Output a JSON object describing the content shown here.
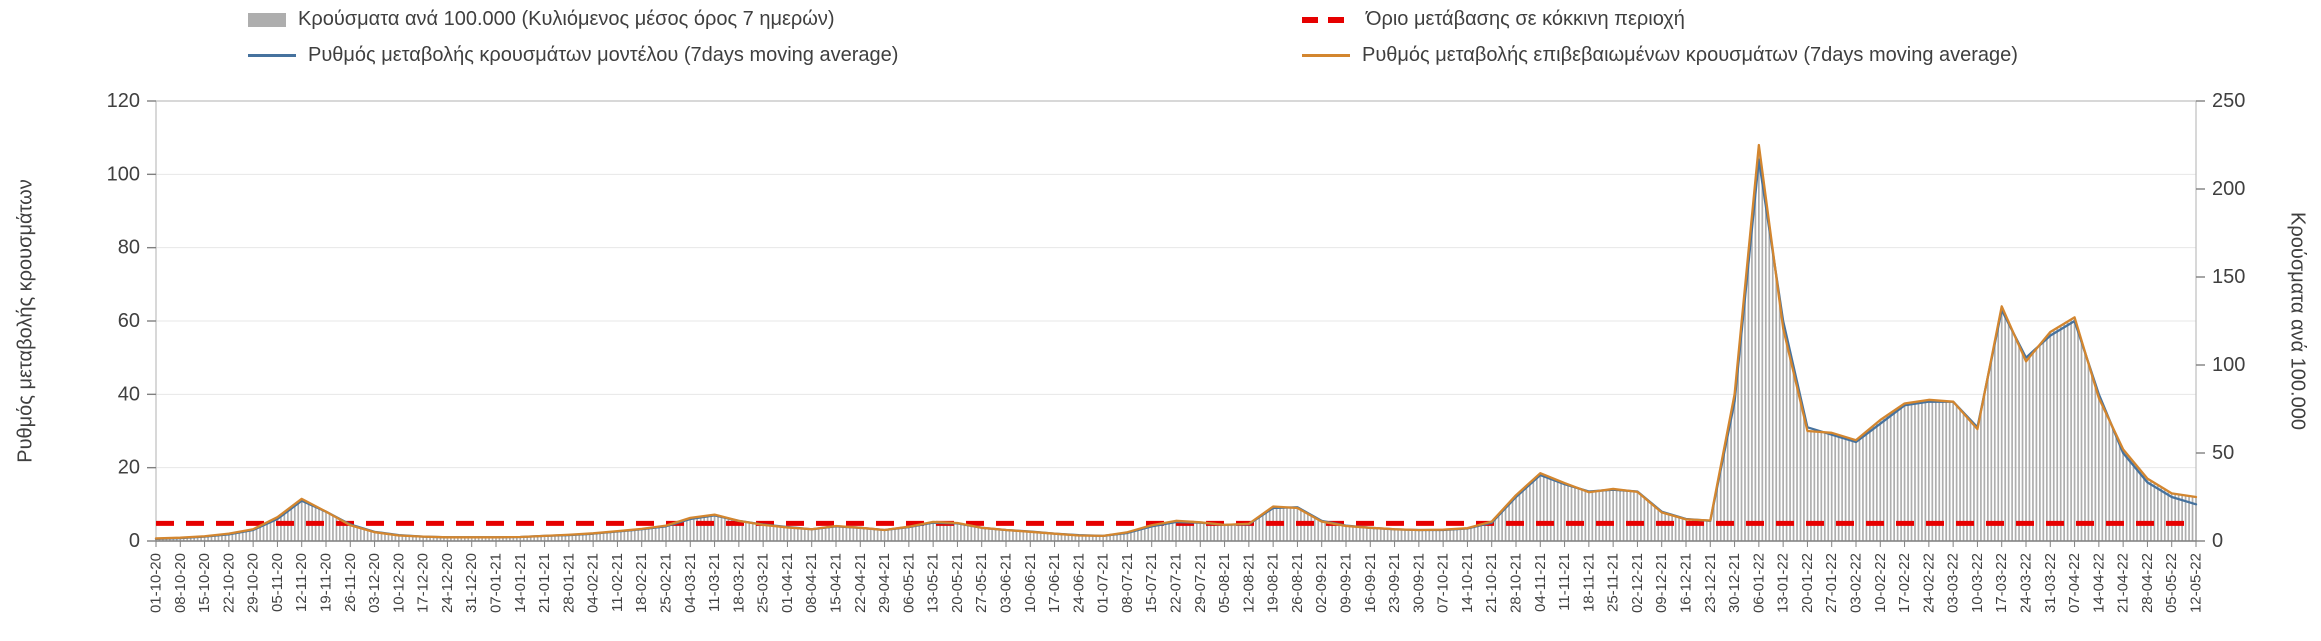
{
  "page": {
    "background": "#ffffff"
  },
  "colors": {
    "bars": "#aeaeae",
    "threshold": "#e60000",
    "model_line": "#46729e",
    "confirmed_line": "#d3862f",
    "grid": "#e7e7e7",
    "spine": "#bdbdbd",
    "text": "#404040"
  },
  "legend": {
    "items": [
      {
        "key": "bars",
        "label": "Κρούσματα ανά 100.000 (Κυλιόμενος μέσος όρος 7 ημερών)",
        "marker": "thick-bar"
      },
      {
        "key": "threshold",
        "label": "Όριο μετάβασης σε κόκκινη περιοχή",
        "marker": "dashed-line"
      },
      {
        "key": "model",
        "label": "Ρυθμός μεταβολής κρουσμάτων μοντέλου (7days moving average)",
        "marker": "line"
      },
      {
        "key": "confirmed",
        "label": "Ρυθμός μεταβολής επιβεβαιωμένων κρουσμάτων (7days moving average)",
        "marker": "line"
      }
    ]
  },
  "chart_data": {
    "type": "bar",
    "title": "",
    "grid": "horizontal",
    "legend_position": "top",
    "left_axis": {
      "label": "Ρυθμός μεταβολής κρουσμάτων",
      "range": [
        0,
        120
      ],
      "ticks": [
        0,
        20,
        40,
        60,
        80,
        100,
        120
      ]
    },
    "right_axis": {
      "label": "Κρούσματα ανά 100.000",
      "range": [
        0,
        250
      ],
      "ticks": [
        0,
        50,
        100,
        150,
        200,
        250
      ]
    },
    "categories": [
      "01-10-20",
      "08-10-20",
      "15-10-20",
      "22-10-20",
      "29-10-20",
      "05-11-20",
      "12-11-20",
      "19-11-20",
      "26-11-20",
      "03-12-20",
      "10-12-20",
      "17-12-20",
      "24-12-20",
      "31-12-20",
      "07-01-21",
      "14-01-21",
      "21-01-21",
      "28-01-21",
      "04-02-21",
      "11-02-21",
      "18-02-21",
      "25-02-21",
      "04-03-21",
      "11-03-21",
      "18-03-21",
      "25-03-21",
      "01-04-21",
      "08-04-21",
      "15-04-21",
      "22-04-21",
      "29-04-21",
      "06-05-21",
      "13-05-21",
      "20-05-21",
      "27-05-21",
      "03-06-21",
      "10-06-21",
      "17-06-21",
      "24-06-21",
      "01-07-21",
      "08-07-21",
      "15-07-21",
      "22-07-21",
      "29-07-21",
      "05-08-21",
      "12-08-21",
      "19-08-21",
      "26-08-21",
      "02-09-21",
      "09-09-21",
      "16-09-21",
      "23-09-21",
      "30-09-21",
      "07-10-21",
      "14-10-21",
      "21-10-21",
      "28-10-21",
      "04-11-21",
      "11-11-21",
      "18-11-21",
      "25-11-21",
      "02-12-21",
      "09-12-21",
      "16-12-21",
      "23-12-21",
      "30-12-21",
      "06-01-22",
      "13-01-22",
      "20-01-22",
      "27-01-22",
      "03-02-22",
      "10-02-22",
      "17-02-22",
      "24-02-22",
      "03-03-22",
      "10-03-22",
      "17-03-22",
      "24-03-22",
      "31-03-22",
      "07-04-22",
      "14-04-22",
      "21-04-22",
      "28-04-22",
      "05-05-22",
      "12-05-22"
    ],
    "series": [
      {
        "name": "Κρούσματα ανά 100.000 (Κυλιόμενος μέσος όρος 7 ημερών)",
        "type": "bar",
        "axis": "right",
        "values": [
          1,
          2,
          3,
          4,
          7,
          14,
          24,
          17,
          9,
          5,
          3,
          2,
          2,
          2,
          2,
          2,
          3,
          4,
          4,
          6,
          7,
          9,
          13,
          15,
          11,
          9,
          8,
          7,
          9,
          7,
          6,
          8,
          11,
          10,
          7,
          6,
          5,
          4,
          3,
          3,
          5,
          9,
          11,
          11,
          9,
          10,
          20,
          19,
          11,
          9,
          7,
          7,
          6,
          6,
          7,
          11,
          26,
          38,
          33,
          28,
          30,
          28,
          16,
          12,
          12,
          83,
          225,
          121,
          62,
          61,
          57,
          69,
          78,
          80,
          79,
          63,
          133,
          102,
          119,
          127,
          81,
          52,
          35,
          27,
          25
        ]
      },
      {
        "name": "Ρυθμός μεταβολής κρουσμάτων μοντέλου (7days moving average)",
        "type": "line",
        "axis": "left",
        "values": [
          0.6,
          0.8,
          1.2,
          1.8,
          3.0,
          6.0,
          11.0,
          8.0,
          4.5,
          2.5,
          1.6,
          1.2,
          1.0,
          1.0,
          1.0,
          1.1,
          1.4,
          1.6,
          2.0,
          2.6,
          3.2,
          4.0,
          6.0,
          7.0,
          5.5,
          4.5,
          3.8,
          3.2,
          4.0,
          3.6,
          3.0,
          3.8,
          5.0,
          4.8,
          3.6,
          3.0,
          2.6,
          2.0,
          1.6,
          1.4,
          2.2,
          4.0,
          5.2,
          5.0,
          4.4,
          4.6,
          9.0,
          9.2,
          5.5,
          4.2,
          3.6,
          3.2,
          3.0,
          3.0,
          3.4,
          5.0,
          12.0,
          18.0,
          15.5,
          13.5,
          14.0,
          13.5,
          8.0,
          6.0,
          5.5,
          38.0,
          104.0,
          60.0,
          31.0,
          29.0,
          27.0,
          32.0,
          37.0,
          38.0,
          38.0,
          31.0,
          63.0,
          50.0,
          56.0,
          60.0,
          40.0,
          24.0,
          16.0,
          12.0,
          10.0
        ]
      },
      {
        "name": "Ρυθμός μεταβολής επιβεβαιωμένων κρουσμάτων (7days moving average)",
        "type": "line",
        "axis": "left",
        "values": [
          0.7,
          0.9,
          1.3,
          2.0,
          3.2,
          6.5,
          11.5,
          8.0,
          4.3,
          2.4,
          1.5,
          1.2,
          1.0,
          1.0,
          1.0,
          1.1,
          1.4,
          1.7,
          2.1,
          2.7,
          3.3,
          4.2,
          6.3,
          7.2,
          5.5,
          4.4,
          3.7,
          3.2,
          4.1,
          3.6,
          3.0,
          3.9,
          5.2,
          4.9,
          3.6,
          3.0,
          2.5,
          2.0,
          1.5,
          1.4,
          2.4,
          4.3,
          5.5,
          5.1,
          4.4,
          4.7,
          9.4,
          9.0,
          5.3,
          4.1,
          3.6,
          3.2,
          3.0,
          3.1,
          3.5,
          5.3,
          12.5,
          18.5,
          15.8,
          13.3,
          14.2,
          13.4,
          7.8,
          5.9,
          5.6,
          40.0,
          108.0,
          58.0,
          30.0,
          29.5,
          27.5,
          33.0,
          37.5,
          38.5,
          38.0,
          30.5,
          64.0,
          49.0,
          57.0,
          61.0,
          39.0,
          25.0,
          17.0,
          13.0,
          12.0
        ]
      },
      {
        "name": "Όριο μετάβασης σε κόκκινη περιοχή",
        "type": "threshold",
        "axis": "right",
        "value": 10
      }
    ]
  }
}
